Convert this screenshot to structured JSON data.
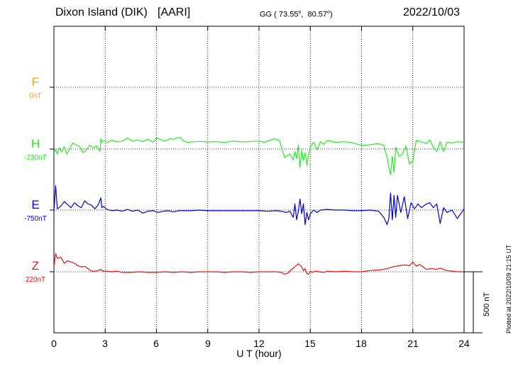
{
  "header": {
    "station": "Dixon Island (DIK)",
    "institute": "[AARI]",
    "gg_prefix": "GG (",
    "lat": "73.55",
    "lon": "80.57",
    "date": "2022/10/03"
  },
  "footer": {
    "plotted": "Plotted at 2022/10/09 21:15 UT",
    "scale": "500 nT"
  },
  "channels": [
    {
      "key": "F",
      "label": "F",
      "offset": "0nT",
      "color": "#f0a800"
    },
    {
      "key": "H",
      "label": "H",
      "offset": "-230nT",
      "color": "#22ee22"
    },
    {
      "key": "E",
      "label": "E",
      "offset": "-750nT",
      "color": "#0000dd"
    },
    {
      "key": "Z",
      "label": "Z",
      "offset": "220nT",
      "color": "#ee1111"
    }
  ],
  "chart_data": {
    "type": "line",
    "xlabel": "U T (hour)",
    "xlim": [
      0,
      24
    ],
    "xticks": [
      "0",
      "3",
      "6",
      "9",
      "12",
      "15",
      "18",
      "21",
      "24"
    ],
    "y_unit": "nT",
    "scale_bar_nT": 500,
    "grid": true,
    "series": [
      {
        "name": "H",
        "x": [
          0,
          0.1,
          0.2,
          0.3,
          0.45,
          0.6,
          0.75,
          0.9,
          1.1,
          1.3,
          1.5,
          1.7,
          1.9,
          2.1,
          2.3,
          2.5,
          2.7,
          2.75,
          2.8,
          2.9,
          3.1,
          3.4,
          3.7,
          4.0,
          4.3,
          4.6,
          4.9,
          5.2,
          5.5,
          5.8,
          6.0,
          6.2,
          6.5,
          6.8,
          7.0,
          7.2,
          7.4,
          7.6,
          7.8,
          8.2,
          8.6,
          9,
          9.5,
          10,
          10.5,
          11,
          11.5,
          12,
          12.3,
          12.6,
          12.9,
          13.2,
          13.5,
          13.8,
          14.0,
          14.1,
          14.2,
          14.3,
          14.4,
          14.5,
          14.6,
          14.7,
          14.8,
          14.9,
          15.0,
          15.2,
          15.4,
          15.6,
          15.8,
          16.0,
          16.5,
          17,
          17.5,
          18,
          18.5,
          19,
          19.3,
          19.5,
          19.6,
          19.7,
          19.8,
          19.9,
          20.0,
          20.2,
          20.4,
          20.6,
          20.8,
          21.0,
          21.2,
          21.5,
          21.8,
          22.0,
          22.2,
          22.4,
          22.6,
          22.8,
          23.0,
          23.3,
          23.6,
          24
        ],
        "y": [
          -30,
          -5,
          -40,
          10,
          -25,
          20,
          -40,
          -5,
          50,
          35,
          20,
          -30,
          -5,
          30,
          10,
          25,
          -20,
          85,
          55,
          70,
          55,
          72,
          58,
          65,
          90,
          65,
          75,
          60,
          80,
          55,
          92,
          80,
          65,
          85,
          80,
          92,
          95,
          65,
          55,
          60,
          62,
          58,
          60,
          55,
          65,
          58,
          62,
          65,
          55,
          70,
          85,
          70,
          -70,
          -40,
          -90,
          -20,
          -80,
          30,
          -150,
          -10,
          -95,
          -30,
          -130,
          -50,
          20,
          55,
          -5,
          60,
          40,
          70,
          55,
          60,
          50,
          30,
          35,
          45,
          30,
          -70,
          -150,
          -210,
          -60,
          -190,
          15,
          -60,
          -40,
          25,
          -120,
          -100,
          70,
          60,
          45,
          75,
          15,
          -20,
          60,
          -20,
          55,
          50,
          60,
          55
        ]
      },
      {
        "name": "E",
        "x": [
          0,
          0.1,
          0.2,
          0.4,
          0.6,
          0.8,
          1.0,
          1.2,
          1.4,
          1.6,
          1.8,
          2.0,
          2.2,
          2.4,
          2.6,
          2.75,
          2.8,
          2.9,
          3.1,
          3.4,
          3.7,
          4.0,
          4.3,
          4.6,
          4.9,
          5.2,
          5.5,
          5.8,
          6.1,
          6.4,
          6.7,
          7.0,
          7.3,
          7.6,
          8,
          8.5,
          9,
          9.5,
          10,
          10.5,
          11,
          11.5,
          12,
          12.5,
          13,
          13.3,
          13.6,
          13.8,
          14.0,
          14.1,
          14.2,
          14.3,
          14.4,
          14.5,
          14.6,
          14.7,
          14.8,
          14.9,
          15.0,
          15.2,
          15.4,
          15.6,
          16,
          16.5,
          17,
          17.5,
          18,
          18.5,
          19,
          19.3,
          19.5,
          19.6,
          19.7,
          19.8,
          19.9,
          20.0,
          20.1,
          20.3,
          20.5,
          20.7,
          20.9,
          21.1,
          21.3,
          21.5,
          21.8,
          22.0,
          22.2,
          22.4,
          22.6,
          22.8,
          23.0,
          23.3,
          23.6,
          24
        ],
        "y": [
          -10,
          200,
          10,
          30,
          70,
          45,
          20,
          60,
          35,
          20,
          75,
          50,
          40,
          10,
          45,
          100,
          20,
          30,
          5,
          -5,
          0,
          -10,
          5,
          -10,
          0,
          -25,
          -10,
          -5,
          -20,
          -10,
          -5,
          -15,
          -5,
          -5,
          -5,
          0,
          -5,
          -5,
          -5,
          -5,
          -5,
          -5,
          -5,
          -10,
          -5,
          -10,
          -20,
          -10,
          -60,
          50,
          -80,
          -10,
          90,
          -30,
          50,
          -120,
          -20,
          -80,
          -30,
          0,
          -20,
          0,
          5,
          0,
          0,
          -5,
          -5,
          0,
          -10,
          -60,
          -120,
          -70,
          140,
          -80,
          120,
          -60,
          120,
          -20,
          110,
          -70,
          60,
          10,
          50,
          20,
          50,
          60,
          20,
          50,
          -110,
          20,
          -20,
          0,
          -70,
          10
        ]
      },
      {
        "name": "Z",
        "x": [
          0,
          0.1,
          0.2,
          0.4,
          0.6,
          0.8,
          1.0,
          1.2,
          1.4,
          1.6,
          1.8,
          2.0,
          2.2,
          2.4,
          2.6,
          2.75,
          2.8,
          2.9,
          3.1,
          3.4,
          3.7,
          4.0,
          4.5,
          5,
          5.5,
          6,
          6.5,
          7,
          7.5,
          8,
          8.5,
          9,
          9.5,
          10,
          10.5,
          11,
          11.5,
          12,
          12.5,
          13,
          13.3,
          13.5,
          13.7,
          13.9,
          14.1,
          14.3,
          14.5,
          14.6,
          14.7,
          14.8,
          14.9,
          15.0,
          15.1,
          15.3,
          15.5,
          15.8,
          16.0,
          16.5,
          17,
          17.5,
          18,
          18.5,
          19,
          19.3,
          19.6,
          19.8,
          20.0,
          20.2,
          20.4,
          20.6,
          20.8,
          21.0,
          21.2,
          21.4,
          21.6,
          21.8,
          22.0,
          22.2,
          22.4,
          22.6,
          22.8,
          23.0,
          23.3,
          23.6,
          24
        ],
        "y": [
          40,
          150,
          110,
          120,
          70,
          90,
          80,
          70,
          50,
          40,
          45,
          25,
          5,
          5,
          10,
          20,
          10,
          5,
          5,
          0,
          5,
          -5,
          -5,
          0,
          -5,
          -5,
          0,
          -5,
          0,
          -5,
          0,
          0,
          0,
          -5,
          0,
          0,
          -5,
          0,
          0,
          0,
          -5,
          -20,
          -10,
          20,
          40,
          65,
          40,
          10,
          25,
          -15,
          -20,
          5,
          -5,
          5,
          0,
          -5,
          5,
          0,
          5,
          0,
          0,
          10,
          15,
          20,
          30,
          40,
          45,
          50,
          55,
          55,
          50,
          80,
          45,
          60,
          40,
          20,
          25,
          25,
          20,
          30,
          20,
          10,
          5,
          0,
          0
        ]
      }
    ]
  }
}
